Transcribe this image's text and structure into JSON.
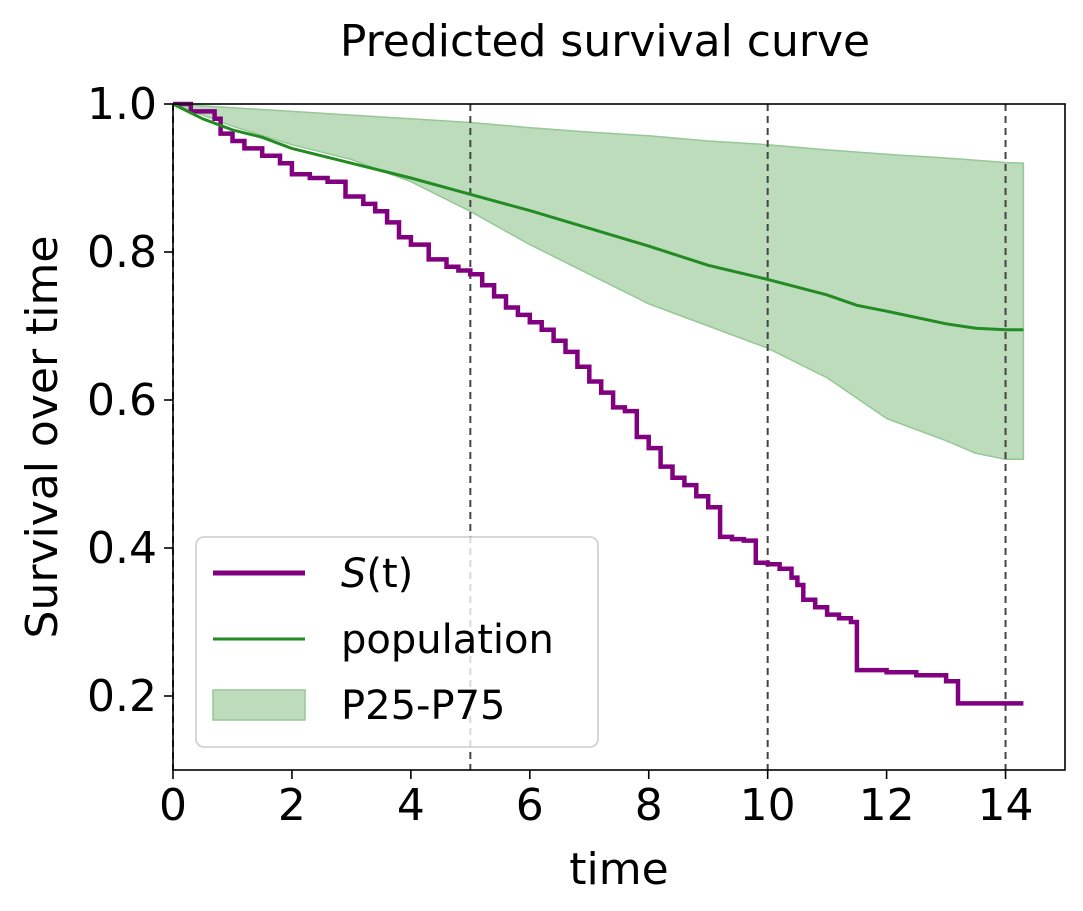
{
  "chart_data": {
    "type": "line",
    "title": "Predicted survival curve",
    "xlabel": "time",
    "ylabel": "Survival over time",
    "xlim": [
      0,
      15
    ],
    "ylim": [
      0.1,
      1.0
    ],
    "xticks": [
      0,
      2,
      4,
      6,
      8,
      10,
      12,
      14
    ],
    "yticks": [
      0.2,
      0.4,
      0.6,
      0.8,
      1.0
    ],
    "xtick_labels": [
      "0",
      "2",
      "4",
      "6",
      "8",
      "10",
      "12",
      "14"
    ],
    "ytick_labels": [
      "0.2",
      "0.4",
      "0.6",
      "0.8",
      "1.0"
    ],
    "vlines": [
      0,
      5,
      10,
      14
    ],
    "grid": false,
    "legend_position": "lower-left",
    "legend": {
      "entries": [
        {
          "label_main": "S",
          "label_rest": "(t)",
          "type": "line"
        },
        {
          "label": "population",
          "type": "line"
        },
        {
          "label": "P25-P75",
          "type": "area"
        }
      ]
    },
    "colors": {
      "survival": "#800080",
      "population": "#228b22",
      "band_fill": "#bcdcbc",
      "band_edge": "#96c896",
      "vline": "#444444"
    },
    "series": [
      {
        "name": "S(t)",
        "step": true,
        "x": [
          0,
          0.3,
          0.7,
          0.8,
          1.0,
          1.2,
          1.5,
          1.8,
          2.0,
          2.3,
          2.6,
          2.9,
          3.2,
          3.4,
          3.6,
          3.8,
          4.0,
          4.3,
          4.6,
          4.8,
          5.0,
          5.2,
          5.4,
          5.6,
          5.8,
          6.0,
          6.2,
          6.4,
          6.6,
          6.8,
          7.0,
          7.2,
          7.4,
          7.6,
          7.8,
          8.0,
          8.2,
          8.4,
          8.6,
          8.8,
          9.0,
          9.2,
          9.4,
          9.6,
          9.8,
          10.0,
          10.2,
          10.4,
          10.5,
          10.6,
          10.8,
          11.0,
          11.2,
          11.4,
          11.5,
          12.0,
          12.5,
          13.0,
          13.2,
          14.3
        ],
        "y": [
          1.0,
          0.99,
          0.98,
          0.96,
          0.95,
          0.94,
          0.93,
          0.92,
          0.905,
          0.9,
          0.895,
          0.875,
          0.865,
          0.855,
          0.84,
          0.82,
          0.81,
          0.79,
          0.78,
          0.775,
          0.77,
          0.755,
          0.74,
          0.725,
          0.715,
          0.705,
          0.695,
          0.68,
          0.665,
          0.645,
          0.625,
          0.61,
          0.59,
          0.585,
          0.55,
          0.535,
          0.51,
          0.495,
          0.485,
          0.47,
          0.455,
          0.415,
          0.412,
          0.41,
          0.38,
          0.378,
          0.372,
          0.36,
          0.35,
          0.33,
          0.32,
          0.31,
          0.305,
          0.3,
          0.235,
          0.232,
          0.228,
          0.22,
          0.19,
          0.19
        ]
      },
      {
        "name": "population",
        "step": false,
        "x": [
          0,
          0.5,
          1,
          1.5,
          2,
          3,
          4,
          5,
          6,
          7,
          8,
          9,
          10,
          11,
          11.5,
          12,
          13,
          13.5,
          14,
          14.3
        ],
        "y": [
          1.0,
          0.98,
          0.965,
          0.955,
          0.94,
          0.92,
          0.9,
          0.878,
          0.856,
          0.832,
          0.808,
          0.782,
          0.763,
          0.742,
          0.728,
          0.72,
          0.703,
          0.697,
          0.695,
          0.695
        ]
      }
    ],
    "band": {
      "name": "P25-P75",
      "x": [
        0,
        1,
        2,
        3,
        4,
        5,
        6,
        7,
        8,
        9,
        10,
        11,
        12,
        13,
        13.5,
        14,
        14.3
      ],
      "upper": [
        1.0,
        0.995,
        0.99,
        0.985,
        0.98,
        0.975,
        0.968,
        0.962,
        0.957,
        0.95,
        0.945,
        0.938,
        0.932,
        0.927,
        0.924,
        0.921,
        0.92
      ],
      "lower": [
        1.0,
        0.97,
        0.945,
        0.925,
        0.895,
        0.855,
        0.81,
        0.77,
        0.73,
        0.7,
        0.67,
        0.63,
        0.575,
        0.545,
        0.528,
        0.52,
        0.52
      ]
    }
  }
}
